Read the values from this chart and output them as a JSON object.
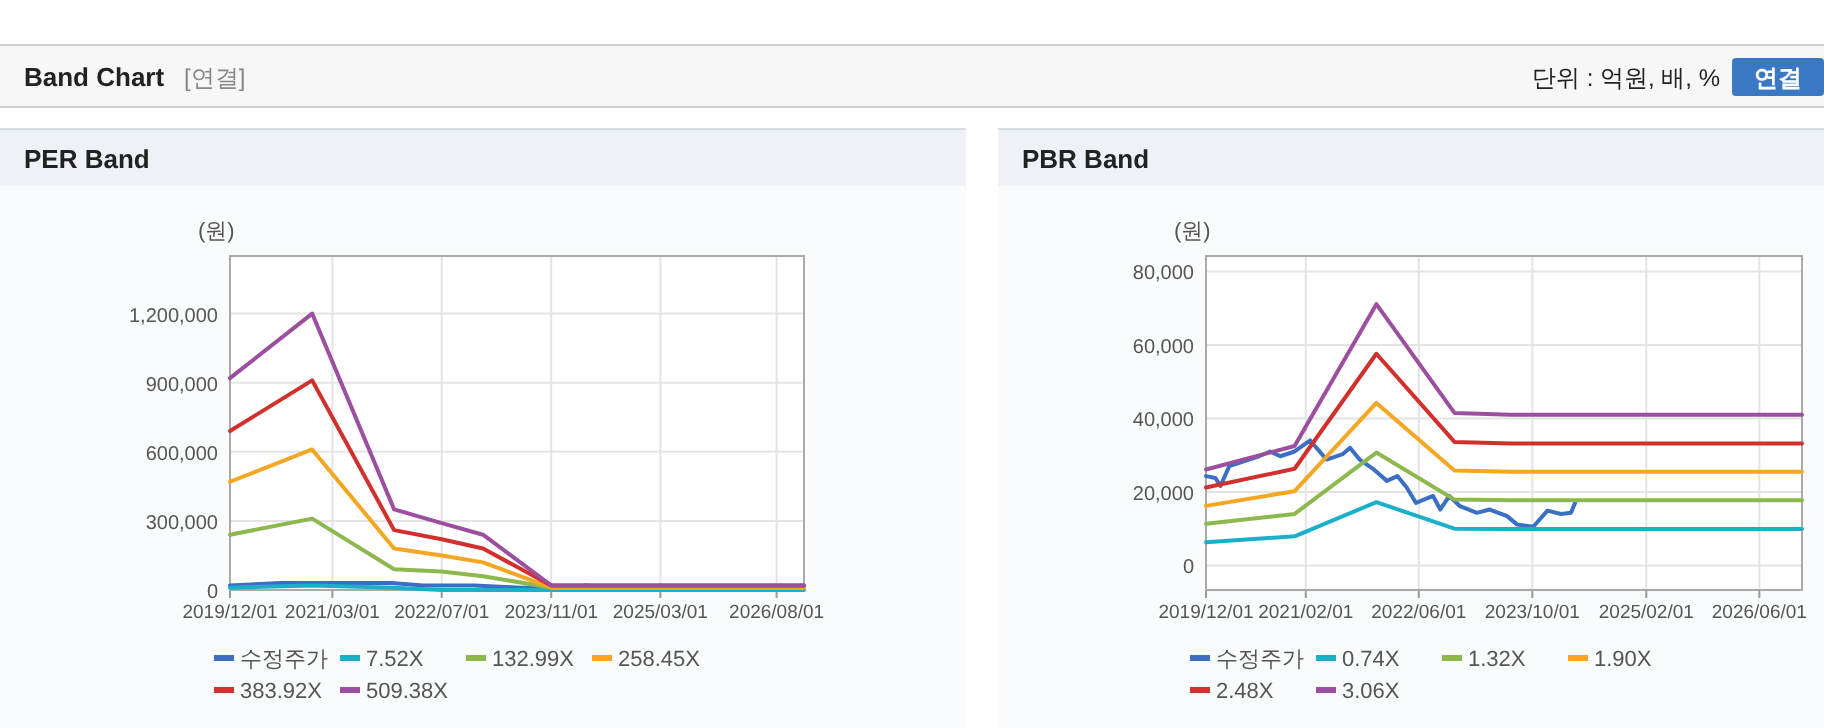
{
  "chart_data": [
    {
      "type": "line",
      "title": "PER Band",
      "ylabel": "(원)",
      "grid": true,
      "legend": "bottom",
      "annotations": [
        "Band Chart",
        "[연결]",
        "단위 : 억원, 배, %",
        "연결"
      ],
      "xlim": [
        "2019-12-01",
        "2026-12-01"
      ],
      "ylim": [
        0,
        1450000
      ],
      "xticks": [
        {
          "value": "2019-12-01",
          "label": "2019/12/01"
        },
        {
          "value": "2021-03-01",
          "label": "2021/03/01"
        },
        {
          "value": "2022-07-01",
          "label": "2022/07/01"
        },
        {
          "value": "2023-11-01",
          "label": "2023/11/01"
        },
        {
          "value": "2025-03-01",
          "label": "2025/03/01"
        },
        {
          "value": "2026-08-01",
          "label": "2026/08/01"
        }
      ],
      "yticks": [
        {
          "value": 0,
          "label": "0"
        },
        {
          "value": 300000,
          "label": "300,000"
        },
        {
          "value": 600000,
          "label": "600,000"
        },
        {
          "value": 900000,
          "label": "900,000"
        },
        {
          "value": 1200000,
          "label": "1,200,000"
        }
      ],
      "series": [
        {
          "name": "수정주가",
          "color": "#3a6fc4",
          "x": [
            "2019-12-01",
            "2020-07-15",
            "2021-02-20",
            "2021-05-01",
            "2021-11-20",
            "2022-04-10",
            "2022-05-20",
            "2022-11-25",
            "2023-06-15",
            "2023-10-05",
            "2024-03-15",
            "2024-04-05"
          ],
          "values": [
            20000,
            30000,
            30000,
            30000,
            30000,
            20000,
            20000,
            20000,
            10000,
            10000,
            10000,
            20000
          ]
        },
        {
          "name": "7.52X",
          "color": "#1ab0c8",
          "x": [
            "2019-12-01",
            "2020-12-01",
            "2021-12-01",
            "2022-07-01",
            "2023-01-01",
            "2023-11-01",
            "2026-12-01"
          ],
          "values": [
            10000,
            20000,
            10000,
            0,
            0,
            0,
            0
          ]
        },
        {
          "name": "132.99X",
          "color": "#8cb84e",
          "x": [
            "2019-12-01",
            "2020-12-01",
            "2021-12-01",
            "2022-07-01",
            "2023-01-01",
            "2023-11-01",
            "2026-12-01"
          ],
          "values": [
            240000,
            310000,
            90000,
            80000,
            60000,
            10000,
            10000
          ]
        },
        {
          "name": "258.45X",
          "color": "#f5a623",
          "x": [
            "2019-12-01",
            "2020-12-01",
            "2021-12-01",
            "2022-07-01",
            "2023-01-01",
            "2023-11-01",
            "2026-12-01"
          ],
          "values": [
            470000,
            610000,
            180000,
            150000,
            120000,
            10000,
            10000
          ]
        },
        {
          "name": "383.92X",
          "color": "#d2302c",
          "x": [
            "2019-12-01",
            "2020-12-01",
            "2021-12-01",
            "2022-07-01",
            "2023-01-01",
            "2023-11-01",
            "2026-12-01"
          ],
          "values": [
            690000,
            910000,
            260000,
            220000,
            180000,
            20000,
            20000
          ]
        },
        {
          "name": "509.38X",
          "color": "#9b4f9e",
          "x": [
            "2019-12-01",
            "2020-12-01",
            "2021-12-01",
            "2022-07-01",
            "2023-01-01",
            "2023-11-01",
            "2026-12-01"
          ],
          "values": [
            920000,
            1200000,
            350000,
            290000,
            240000,
            20000,
            20000
          ]
        }
      ]
    },
    {
      "type": "line",
      "title": "PBR Band",
      "ylabel": "(원)",
      "grid": true,
      "legend": "bottom",
      "xlim": [
        "2019-12-01",
        "2026-12-01"
      ],
      "ylim": [
        -6700,
        84200
      ],
      "xticks": [
        {
          "value": "2019-12-01",
          "label": "2019/12/01"
        },
        {
          "value": "2021-02-01",
          "label": "2021/02/01"
        },
        {
          "value": "2022-06-01",
          "label": "2022/06/01"
        },
        {
          "value": "2023-10-01",
          "label": "2023/10/01"
        },
        {
          "value": "2025-02-01",
          "label": "2025/02/01"
        },
        {
          "value": "2026-06-01",
          "label": "2026/06/01"
        }
      ],
      "yticks": [
        {
          "value": 0,
          "label": "0"
        },
        {
          "value": 20000,
          "label": "20,000"
        },
        {
          "value": 40000,
          "label": "40,000"
        },
        {
          "value": 60000,
          "label": "60,000"
        },
        {
          "value": 80000,
          "label": "80,000"
        }
      ],
      "series": [
        {
          "name": "수정주가",
          "color": "#3a6fc4",
          "x": [
            "2019-12-01",
            "2020-01-10",
            "2020-02-01",
            "2020-03-10",
            "2020-07-15",
            "2020-09-01",
            "2020-10-15",
            "2020-12-15",
            "2021-02-20",
            "2021-05-01",
            "2021-07-10",
            "2021-08-10",
            "2021-09-20",
            "2021-11-20",
            "2022-01-15",
            "2022-03-01",
            "2022-04-10",
            "2022-05-20",
            "2022-08-01",
            "2022-09-01",
            "2022-10-10",
            "2022-11-25",
            "2023-02-05",
            "2023-04-01",
            "2023-06-15",
            "2023-07-28",
            "2023-10-05",
            "2023-12-05",
            "2024-02-01",
            "2024-03-15",
            "2024-04-05"
          ],
          "values": [
            24300,
            23800,
            21600,
            27000,
            29700,
            31000,
            29700,
            31000,
            34000,
            28800,
            30300,
            32000,
            28800,
            26100,
            23000,
            24300,
            21200,
            17000,
            18900,
            15200,
            18900,
            16100,
            14300,
            15200,
            13400,
            11100,
            10500,
            14900,
            14000,
            14300,
            17600
          ]
        },
        {
          "name": "0.74X",
          "color": "#1ab0c8",
          "x": [
            "2019-12-01",
            "2020-12-15",
            "2021-12-01",
            "2022-11-01",
            "2023-07-01",
            "2026-12-01"
          ],
          "values": [
            6300,
            7900,
            17200,
            10000,
            9900,
            9900
          ]
        },
        {
          "name": "1.32X",
          "color": "#8cb84e",
          "x": [
            "2019-12-01",
            "2020-12-15",
            "2021-12-01",
            "2022-11-01",
            "2023-07-01",
            "2026-12-01"
          ],
          "values": [
            11300,
            14000,
            30700,
            17900,
            17700,
            17700
          ]
        },
        {
          "name": "1.90X",
          "color": "#f5a623",
          "x": [
            "2019-12-01",
            "2020-12-15",
            "2021-12-01",
            "2022-11-01",
            "2023-07-01",
            "2026-12-01"
          ],
          "values": [
            16200,
            20200,
            44200,
            25800,
            25500,
            25500
          ]
        },
        {
          "name": "2.48X",
          "color": "#d2302c",
          "x": [
            "2019-12-01",
            "2020-12-15",
            "2021-12-01",
            "2022-11-01",
            "2023-07-01",
            "2026-12-01"
          ],
          "values": [
            21200,
            26300,
            57600,
            33600,
            33200,
            33200
          ]
        },
        {
          "name": "3.06X",
          "color": "#9b4f9e",
          "x": [
            "2019-12-01",
            "2020-12-15",
            "2021-12-01",
            "2022-11-01",
            "2023-07-01",
            "2026-12-01"
          ],
          "values": [
            26100,
            32500,
            71100,
            41500,
            41000,
            41000
          ]
        }
      ]
    }
  ]
}
